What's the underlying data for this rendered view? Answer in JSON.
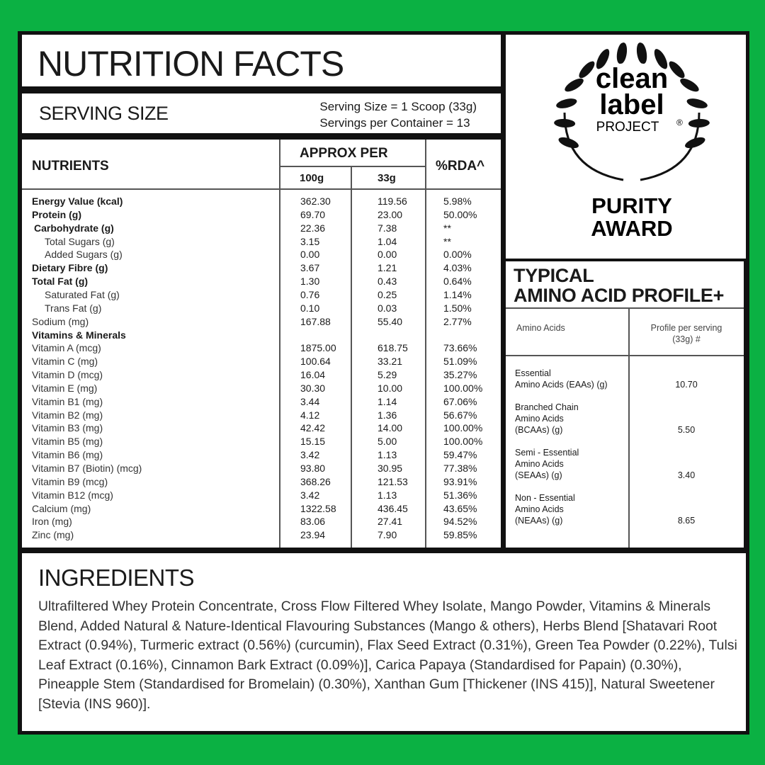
{
  "title": "NUTRITION FACTS",
  "serving": {
    "label": "SERVING SIZE",
    "size": "Serving Size = 1  Scoop (33g)",
    "per_container": "Servings per Container = 13"
  },
  "table": {
    "headers": {
      "nutrients": "NUTRIENTS",
      "approx_per": "APPROX PER",
      "col_100g": "100g",
      "col_33g": "33g",
      "rda": "%RDA^"
    },
    "rows": [
      {
        "name": "Energy Value (kcal)",
        "v100": "362.30",
        "v33": "119.56",
        "rda": "5.98%",
        "bold": true,
        "indent": 0
      },
      {
        "name": "Protein (g)",
        "v100": "69.70",
        "v33": "23.00",
        "rda": "50.00%",
        "bold": true,
        "indent": 0
      },
      {
        "name": "Carbohydrate (g)",
        "v100": "22.36",
        "v33": "7.38",
        "rda": "**",
        "bold": true,
        "indent": 1
      },
      {
        "name": "Total Sugars (g)",
        "v100": "3.15",
        "v33": "1.04",
        "rda": "**",
        "bold": false,
        "indent": 2
      },
      {
        "name": "Added Sugars (g)",
        "v100": "0.00",
        "v33": "0.00",
        "rda": "0.00%",
        "bold": false,
        "indent": 2
      },
      {
        "name": "Dietary Fibre (g)",
        "v100": "3.67",
        "v33": "1.21",
        "rda": "4.03%",
        "bold": true,
        "indent": 0
      },
      {
        "name": "Total Fat (g)",
        "v100": "1.30",
        "v33": "0.43",
        "rda": "0.64%",
        "bold": true,
        "indent": 0
      },
      {
        "name": "Saturated Fat (g)",
        "v100": "0.76",
        "v33": "0.25",
        "rda": "1.14%",
        "bold": false,
        "indent": 2
      },
      {
        "name": "Trans Fat (g)",
        "v100": "0.10",
        "v33": "0.03",
        "rda": "1.50%",
        "bold": false,
        "indent": 2
      },
      {
        "name": "Sodium (mg)",
        "v100": "167.88",
        "v33": "55.40",
        "rda": "2.77%",
        "bold": false,
        "indent": 0
      },
      {
        "name": "Vitamins & Minerals",
        "v100": "",
        "v33": "",
        "rda": "",
        "bold": true,
        "indent": 0
      },
      {
        "name": "Vitamin A (mcg)",
        "v100": "1875.00",
        "v33": "618.75",
        "rda": "73.66%",
        "bold": false,
        "indent": 0
      },
      {
        "name": "Vitamin C (mg)",
        "v100": "100.64",
        "v33": "33.21",
        "rda": "51.09%",
        "bold": false,
        "indent": 0
      },
      {
        "name": "Vitamin D (mcg)",
        "v100": "16.04",
        "v33": "5.29",
        "rda": "35.27%",
        "bold": false,
        "indent": 0
      },
      {
        "name": "Vitamin E (mg)",
        "v100": "30.30",
        "v33": "10.00",
        "rda": "100.00%",
        "bold": false,
        "indent": 0
      },
      {
        "name": "Vitamin B1 (mg)",
        "v100": "3.44",
        "v33": "1.14",
        "rda": "67.06%",
        "bold": false,
        "indent": 0
      },
      {
        "name": "Vitamin B2 (mg)",
        "v100": "4.12",
        "v33": "1.36",
        "rda": "56.67%",
        "bold": false,
        "indent": 0
      },
      {
        "name": "Vitamin B3 (mg)",
        "v100": "42.42",
        "v33": "14.00",
        "rda": "100.00%",
        "bold": false,
        "indent": 0
      },
      {
        "name": "Vitamin B5 (mg)",
        "v100": "15.15",
        "v33": "5.00",
        "rda": "100.00%",
        "bold": false,
        "indent": 0
      },
      {
        "name": "Vitamin B6 (mg)",
        "v100": "3.42",
        "v33": "1.13",
        "rda": "59.47%",
        "bold": false,
        "indent": 0
      },
      {
        "name": "Vitamin B7 (Biotin) (mcg)",
        "v100": "93.80",
        "v33": "30.95",
        "rda": "77.38%",
        "bold": false,
        "indent": 0
      },
      {
        "name": "Vitamin B9 (mcg)",
        "v100": "368.26",
        "v33": "121.53",
        "rda": "93.91%",
        "bold": false,
        "indent": 0
      },
      {
        "name": "Vitamin B12 (mcg)",
        "v100": "3.42",
        "v33": "1.13",
        "rda": "51.36%",
        "bold": false,
        "indent": 0
      },
      {
        "name": "Calcium (mg)",
        "v100": "1322.58",
        "v33": "436.45",
        "rda": "43.65%",
        "bold": false,
        "indent": 0
      },
      {
        "name": "Iron (mg)",
        "v100": "83.06",
        "v33": "27.41",
        "rda": "94.52%",
        "bold": false,
        "indent": 0
      },
      {
        "name": "Zinc (mg)",
        "v100": "23.94",
        "v33": "7.90",
        "rda": "59.85%",
        "bold": false,
        "indent": 0
      }
    ]
  },
  "award": {
    "logo_line1": "clean",
    "logo_line2": "label",
    "logo_line3": "PROJECT",
    "registered": "®",
    "title_line1": "PURITY",
    "title_line2": "AWARD",
    "icon": "laurel-wreath-icon"
  },
  "amino": {
    "title_line1": "TYPICAL",
    "title_line2": "AMINO ACID PROFILE+",
    "col1": "Amino Acids",
    "col2_line1": "Profile per serving",
    "col2_line2": "(33g) #",
    "rows": [
      {
        "lines": [
          "Essential",
          "Amino Acids (EAAs) (g)"
        ],
        "value": "10.70"
      },
      {
        "lines": [
          "Branched Chain",
          "Amino Acids",
          "(BCAAs) (g)"
        ],
        "value": "5.50"
      },
      {
        "lines": [
          "Semi - Essential",
          "Amino Acids",
          "(SEAAs) (g)"
        ],
        "value": "3.40"
      },
      {
        "lines": [
          "Non - Essential",
          "Amino Acids",
          "(NEAAs) (g)"
        ],
        "value": "8.65"
      }
    ]
  },
  "ingredients": {
    "title": "INGREDIENTS",
    "text": "Ultrafiltered Whey Protein Concentrate, Cross Flow Filtered Whey Isolate, Mango Powder, Vitamins & Minerals Blend, Added Natural & Nature-Identical Flavouring Substances (Mango & others), Herbs Blend [Shatavari Root Extract (0.94%), Turmeric extract (0.56%) (curcumin), Flax Seed Extract (0.31%), Green Tea Powder (0.22%), Tulsi Leaf Extract (0.16%), Cinnamon Bark Extract (0.09%)], Carica Papaya (Standardised for Papain) (0.30%), Pineapple Stem (Standardised for Bromelain) (0.30%), Xanthan Gum [Thickener (INS 415)], Natural Sweetener [Stevia (INS 960)]."
  },
  "colors": {
    "background": "#0bb143",
    "frame": "#111111"
  }
}
